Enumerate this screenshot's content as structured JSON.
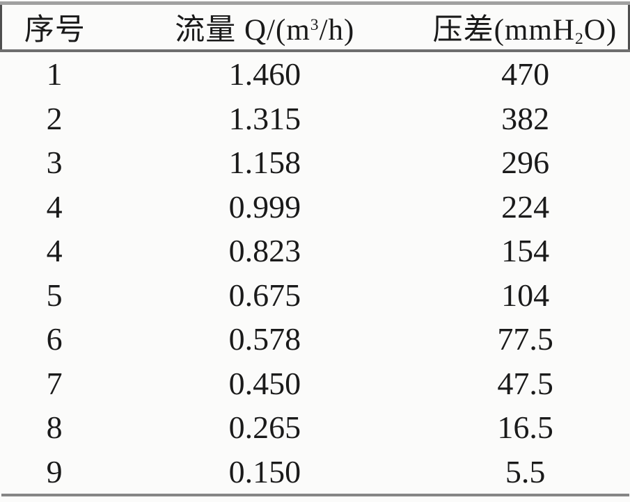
{
  "page": {
    "background_color": "#fbfbfa",
    "text_color": "#1a1a1a",
    "rule_color_top": "#a0a0a0",
    "rule_color_header": "#6e6e6e",
    "rule_color_bottom": "#868686"
  },
  "table": {
    "columns": [
      {
        "id": "index",
        "label": "序号"
      },
      {
        "id": "flow",
        "label_pre": "流量 Q/(m",
        "label_sup": "3",
        "label_post": "/h)",
        "label_plain": "流量 Q/(m³/h)"
      },
      {
        "id": "pressure",
        "label_pre": "压差(mmH",
        "label_sub": "2",
        "label_post": "O)",
        "label_plain": "压差(mmH₂O)"
      }
    ],
    "rows": [
      {
        "index": "1",
        "flow": "1.460",
        "dp": "470"
      },
      {
        "index": "2",
        "flow": "1.315",
        "dp": "382"
      },
      {
        "index": "3",
        "flow": "1.158",
        "dp": "296"
      },
      {
        "index": "4",
        "flow": "0.999",
        "dp": "224"
      },
      {
        "index": "4",
        "flow": "0.823",
        "dp": "154"
      },
      {
        "index": "5",
        "flow": "0.675",
        "dp": "104"
      },
      {
        "index": "6",
        "flow": "0.578",
        "dp": "77.5"
      },
      {
        "index": "7",
        "flow": "0.450",
        "dp": "47.5"
      },
      {
        "index": "8",
        "flow": "0.265",
        "dp": "16.5"
      },
      {
        "index": "9",
        "flow": "0.150",
        "dp": "5.5"
      }
    ]
  },
  "chart_data": {
    "type": "table",
    "columns": [
      "序号",
      "流量 Q/(m³/h)",
      "压差(mmH₂O)"
    ],
    "rows": [
      [
        "1",
        "1.460",
        "470"
      ],
      [
        "2",
        "1.315",
        "382"
      ],
      [
        "3",
        "1.158",
        "296"
      ],
      [
        "4",
        "0.999",
        "224"
      ],
      [
        "4",
        "0.823",
        "154"
      ],
      [
        "5",
        "0.675",
        "104"
      ],
      [
        "6",
        "0.578",
        "77.5"
      ],
      [
        "7",
        "0.450",
        "47.5"
      ],
      [
        "8",
        "0.265",
        "16.5"
      ],
      [
        "9",
        "0.150",
        "5.5"
      ]
    ]
  }
}
